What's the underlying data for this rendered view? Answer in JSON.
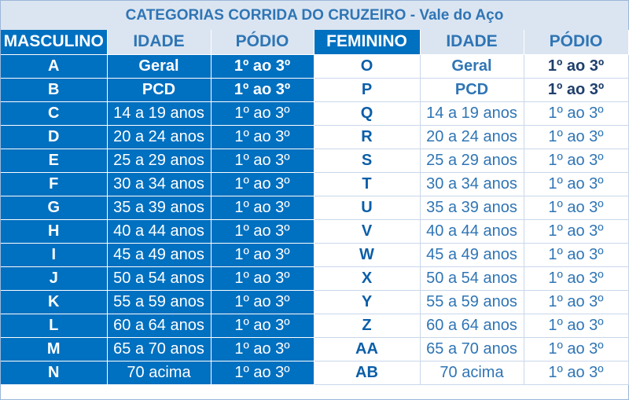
{
  "title": "CATEGORIAS CORRIDA DO CRUZEIRO - Vale do Aço",
  "headers": {
    "masculino": "MASCULINO",
    "idade_m": "IDADE",
    "podio_m": "PÓDIO",
    "feminino": "FEMININO",
    "idade_f": "IDADE",
    "podio_f": "PÓDIO"
  },
  "rows": [
    {
      "m_cat": "A",
      "m_idade": "Geral",
      "m_podio": "1º ao 3º",
      "f_cat": "O",
      "f_idade": "Geral",
      "f_podio": "1º ao 3º"
    },
    {
      "m_cat": "B",
      "m_idade": "PCD",
      "m_podio": "1º ao 3º",
      "f_cat": "P",
      "f_idade": "PCD",
      "f_podio": "1º ao 3º"
    },
    {
      "m_cat": "C",
      "m_idade": "14 a 19 anos",
      "m_podio": "1º ao 3º",
      "f_cat": "Q",
      "f_idade": "14 a 19 anos",
      "f_podio": "1º ao 3º"
    },
    {
      "m_cat": "D",
      "m_idade": "20 a 24 anos",
      "m_podio": "1º ao 3º",
      "f_cat": "R",
      "f_idade": "20 a 24 anos",
      "f_podio": "1º ao 3º"
    },
    {
      "m_cat": "E",
      "m_idade": "25 a 29 anos",
      "m_podio": "1º ao 3º",
      "f_cat": "S",
      "f_idade": "25 a 29 anos",
      "f_podio": "1º ao 3º"
    },
    {
      "m_cat": "F",
      "m_idade": "30 a 34 anos",
      "m_podio": "1º ao 3º",
      "f_cat": "T",
      "f_idade": "30 a 34 anos",
      "f_podio": "1º ao 3º"
    },
    {
      "m_cat": "G",
      "m_idade": "35 a 39 anos",
      "m_podio": "1º ao 3º",
      "f_cat": "U",
      "f_idade": "35 a 39 anos",
      "f_podio": "1º ao 3º"
    },
    {
      "m_cat": "H",
      "m_idade": "40 a 44 anos",
      "m_podio": "1º ao 3º",
      "f_cat": "V",
      "f_idade": "40 a 44 anos",
      "f_podio": "1º ao 3º"
    },
    {
      "m_cat": "I",
      "m_idade": "45 a 49 anos",
      "m_podio": "1º ao 3º",
      "f_cat": "W",
      "f_idade": "45 a 49 anos",
      "f_podio": "1º ao 3º"
    },
    {
      "m_cat": "J",
      "m_idade": "50 a 54 anos",
      "m_podio": "1º ao 3º",
      "f_cat": "X",
      "f_idade": "50 a 54 anos",
      "f_podio": "1º ao 3º"
    },
    {
      "m_cat": "K",
      "m_idade": "55 a 59 anos",
      "m_podio": "1º ao 3º",
      "f_cat": "Y",
      "f_idade": "55 a 59 anos",
      "f_podio": "1º ao 3º"
    },
    {
      "m_cat": "L",
      "m_idade": "60 a 64 anos",
      "m_podio": "1º ao 3º",
      "f_cat": "Z",
      "f_idade": "60 a 64 anos",
      "f_podio": "1º ao 3º"
    },
    {
      "m_cat": "M",
      "m_idade": "65 a 70 anos",
      "m_podio": "1º ao 3º",
      "f_cat": "AA",
      "f_idade": "65 a 70 anos",
      "f_podio": "1º ao 3º"
    },
    {
      "m_cat": "N",
      "m_idade": "70 acima",
      "m_podio": "1º ao 3º",
      "f_cat": "AB",
      "f_idade": "70 acima",
      "f_podio": "1º ao 3º"
    }
  ],
  "colors": {
    "blue": "#0070c0",
    "light_blue": "#dbe5f1",
    "text_blue": "#2f75b5"
  }
}
